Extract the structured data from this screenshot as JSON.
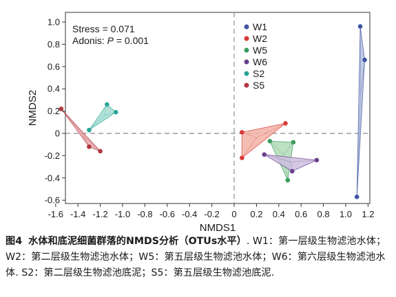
{
  "chart_data": {
    "type": "scatter",
    "xlabel": "NMDS1",
    "ylabel": "NMDS2",
    "xlim": [
      -1.65,
      1.25
    ],
    "ylim": [
      -0.65,
      1.03
    ],
    "xticks": [
      -1.6,
      -1.4,
      -1.2,
      -1.0,
      -0.8,
      -0.6,
      -0.4,
      -0.2,
      0.0,
      0.2,
      0.4,
      0.6,
      0.8,
      1.0,
      1.2
    ],
    "xtick_labels": [
      "-1.6",
      "-1.4",
      "-1.2",
      "-1.0",
      "-0.8",
      "-0.6",
      "-0.4",
      "-0.2",
      "0",
      "0.2",
      "0.4",
      "0.6",
      "0.8",
      "1.0",
      "1.2"
    ],
    "yticks": [
      1.0,
      0.8,
      0.6,
      0.4,
      0.2,
      0.0,
      -0.2,
      -0.4,
      -0.6
    ],
    "ytick_labels": [
      "1.0",
      "0.8",
      "0.6",
      "0.4",
      "0.2",
      "0",
      "-0.2",
      "-0.4",
      "-0.6"
    ],
    "grid": false,
    "reference_lines": "dashed lines at x = 0 and y = 0",
    "legend_position": "top-right",
    "annotations": {
      "stress": "Stress = 0.071",
      "adonis_prefix": "Adonis: ",
      "adonis_p": "P",
      "adonis_suffix": " = 0.001"
    },
    "series": [
      {
        "name": "W1",
        "color": "#3f56a1",
        "fill": "#b9c2df",
        "points": [
          [
            1.13,
            0.96
          ],
          [
            1.17,
            0.66
          ],
          [
            1.1,
            -0.57
          ]
        ]
      },
      {
        "name": "W2",
        "color": "#d93a3a",
        "fill": "#f2b1a6",
        "points": [
          [
            0.07,
            0.01
          ],
          [
            0.46,
            0.09
          ],
          [
            0.07,
            -0.22
          ]
        ]
      },
      {
        "name": "W5",
        "color": "#3a9b5c",
        "fill": "#b2dbb8",
        "points": [
          [
            0.32,
            -0.07
          ],
          [
            0.53,
            -0.08
          ],
          [
            0.48,
            -0.42
          ]
        ]
      },
      {
        "name": "W6",
        "color": "#6a3f8f",
        "fill": "#cdbfe0",
        "points": [
          [
            0.27,
            -0.19
          ],
          [
            0.74,
            -0.24
          ],
          [
            0.52,
            -0.34
          ]
        ]
      },
      {
        "name": "S2",
        "color": "#2aa597",
        "fill": "#a7ddd4",
        "points": [
          [
            -1.3,
            0.03
          ],
          [
            -1.14,
            0.26
          ],
          [
            -1.06,
            0.19
          ]
        ]
      },
      {
        "name": "S5",
        "color": "#b3373f",
        "fill": "#e7aab0",
        "points": [
          [
            -1.55,
            0.22
          ],
          [
            -1.3,
            -0.12
          ],
          [
            -1.2,
            -0.16
          ]
        ]
      }
    ]
  },
  "caption": {
    "label": "图4",
    "title_prefix": "水体和底泥细菌群落的",
    "title_bold": "NMDS",
    "title_mid": "分析（",
    "title_bold2": "OTUs",
    "title_suffix": "水平）",
    "body": ". W1：第一层级生物滤池水体；W2：第二层级生物滤池水体；W5：第五层级生物滤池水体；W6：第六层级生物滤池水体. S2：第二层级生物滤池底泥；S5：第五层级生物滤池底泥."
  }
}
